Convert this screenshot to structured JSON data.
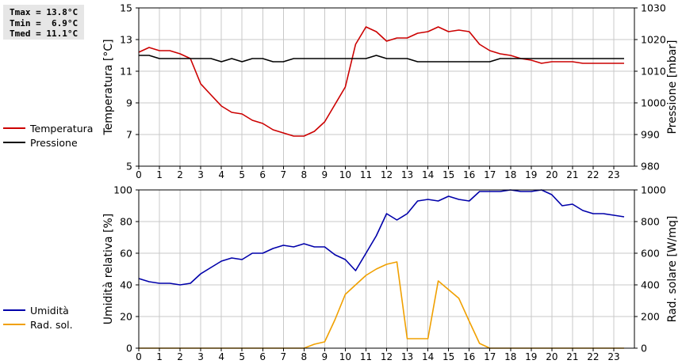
{
  "stats": {
    "tmax": "Tmax = 13.8°C",
    "tmin": "Tmin =  6.9°C",
    "tmed": "Tmed = 11.1°C"
  },
  "colors": {
    "temperature": "#cc0000",
    "pressure": "#000000",
    "humidity": "#0000aa",
    "radiation": "#f0a000",
    "grid": "#c8c8c8"
  },
  "chart_data": [
    {
      "type": "line",
      "x_ticks": [
        0,
        1,
        2,
        3,
        4,
        5,
        6,
        7,
        8,
        9,
        10,
        11,
        12,
        13,
        14,
        15,
        16,
        17,
        18,
        19,
        20,
        21,
        22,
        23
      ],
      "xlim": [
        0,
        24
      ],
      "left_axis": {
        "label": "Temperatura [°C]",
        "ylim": [
          5,
          15
        ],
        "ticks": [
          5,
          7,
          9,
          11,
          13,
          15
        ]
      },
      "right_axis": {
        "label": "Pressione [mbar]",
        "ylim": [
          980,
          1030
        ],
        "ticks": [
          980,
          990,
          1000,
          1010,
          1020,
          1030
        ]
      },
      "grid": true,
      "legend": [
        "Temperatura",
        "Pressione"
      ],
      "series": [
        {
          "name": "Temperatura",
          "axis": "left",
          "x": [
            0,
            0.5,
            1,
            1.5,
            2,
            2.5,
            3,
            3.5,
            4,
            4.5,
            5,
            5.5,
            6,
            6.5,
            7,
            7.5,
            8,
            8.5,
            9,
            9.5,
            10,
            10.5,
            11,
            11.5,
            12,
            12.5,
            13,
            13.5,
            14,
            14.5,
            15,
            15.5,
            16,
            16.5,
            17,
            17.5,
            18,
            18.5,
            19,
            19.5,
            20,
            20.5,
            21,
            21.5,
            22,
            22.5,
            23,
            23.5
          ],
          "y": [
            12.2,
            12.5,
            12.3,
            12.3,
            12.1,
            11.8,
            10.2,
            9.5,
            8.8,
            8.4,
            8.3,
            7.9,
            7.7,
            7.3,
            7.1,
            6.9,
            6.9,
            7.2,
            7.8,
            8.9,
            10.0,
            12.7,
            13.8,
            13.5,
            12.9,
            13.1,
            13.1,
            13.4,
            13.5,
            13.8,
            13.5,
            13.6,
            13.5,
            12.7,
            12.3,
            12.1,
            12.0,
            11.8,
            11.7,
            11.5,
            11.6,
            11.6,
            11.6,
            11.5,
            11.5,
            11.5,
            11.5,
            11.5
          ]
        },
        {
          "name": "Pressione",
          "axis": "right",
          "x": [
            0,
            0.5,
            1,
            1.5,
            2,
            2.5,
            3,
            3.5,
            4,
            4.5,
            5,
            5.5,
            6,
            6.5,
            7,
            7.5,
            8,
            8.5,
            9,
            9.5,
            10,
            10.5,
            11,
            11.5,
            12,
            12.5,
            13,
            13.5,
            14,
            14.5,
            15,
            15.5,
            16,
            16.5,
            17,
            17.5,
            18,
            18.5,
            19,
            19.5,
            20,
            20.5,
            21,
            21.5,
            22,
            22.5,
            23,
            23.5
          ],
          "y": [
            1015,
            1015,
            1014,
            1014,
            1014,
            1014,
            1014,
            1014,
            1013,
            1014,
            1013,
            1014,
            1014,
            1013,
            1013,
            1014,
            1014,
            1014,
            1014,
            1014,
            1014,
            1014,
            1014,
            1015,
            1014,
            1014,
            1014,
            1013,
            1013,
            1013,
            1013,
            1013,
            1013,
            1013,
            1013,
            1014,
            1014,
            1014,
            1014,
            1014,
            1014,
            1014,
            1014,
            1014,
            1014,
            1014,
            1014,
            1014
          ]
        }
      ]
    },
    {
      "type": "line",
      "x_ticks": [
        0,
        1,
        2,
        3,
        4,
        5,
        6,
        7,
        8,
        9,
        10,
        11,
        12,
        13,
        14,
        15,
        16,
        17,
        18,
        19,
        20,
        21,
        22,
        23
      ],
      "xlim": [
        0,
        24
      ],
      "left_axis": {
        "label": "Umidità relativa [%]",
        "ylim": [
          0,
          100
        ],
        "ticks": [
          0,
          20,
          40,
          60,
          80,
          100
        ]
      },
      "right_axis": {
        "label": "Rad. solare [W/mq]",
        "ylim": [
          0,
          1000
        ],
        "ticks": [
          0,
          200,
          400,
          600,
          800,
          1000
        ]
      },
      "grid": true,
      "legend": [
        "Umidità",
        "Rad. sol."
      ],
      "series": [
        {
          "name": "Umidità",
          "axis": "left",
          "x": [
            0,
            0.5,
            1,
            1.5,
            2,
            2.5,
            3,
            3.5,
            4,
            4.5,
            5,
            5.5,
            6,
            6.5,
            7,
            7.5,
            8,
            8.5,
            9,
            9.5,
            10,
            10.5,
            11,
            11.5,
            12,
            12.5,
            13,
            13.5,
            14,
            14.5,
            15,
            15.5,
            16,
            16.5,
            17,
            17.5,
            18,
            18.5,
            19,
            19.5,
            20,
            20.5,
            21,
            21.5,
            22,
            22.5,
            23,
            23.5
          ],
          "y": [
            44,
            42,
            41,
            41,
            40,
            41,
            47,
            51,
            55,
            57,
            56,
            60,
            60,
            63,
            65,
            64,
            66,
            64,
            64,
            59,
            56,
            49,
            60,
            71,
            85,
            81,
            85,
            93,
            94,
            93,
            96,
            94,
            93,
            99,
            99,
            99,
            100,
            99,
            99,
            100,
            97,
            90,
            91,
            87,
            85,
            85,
            84,
            83
          ]
        },
        {
          "name": "Rad. sol.",
          "axis": "right",
          "x": [
            0,
            1,
            2,
            3,
            4,
            5,
            6,
            7,
            8,
            8.5,
            9,
            9.5,
            10,
            10.5,
            11,
            11.5,
            12,
            12.5,
            13,
            13.5,
            14,
            14.5,
            15,
            15.5,
            16,
            16.5,
            17,
            18,
            19,
            20,
            21,
            22,
            23,
            23.5
          ],
          "y": [
            0,
            0,
            0,
            0,
            0,
            0,
            0,
            0,
            0,
            25,
            40,
            180,
            340,
            400,
            460,
            500,
            530,
            545,
            60,
            60,
            60,
            425,
            370,
            315,
            170,
            30,
            0,
            0,
            0,
            0,
            0,
            0,
            0,
            0
          ]
        }
      ]
    }
  ]
}
